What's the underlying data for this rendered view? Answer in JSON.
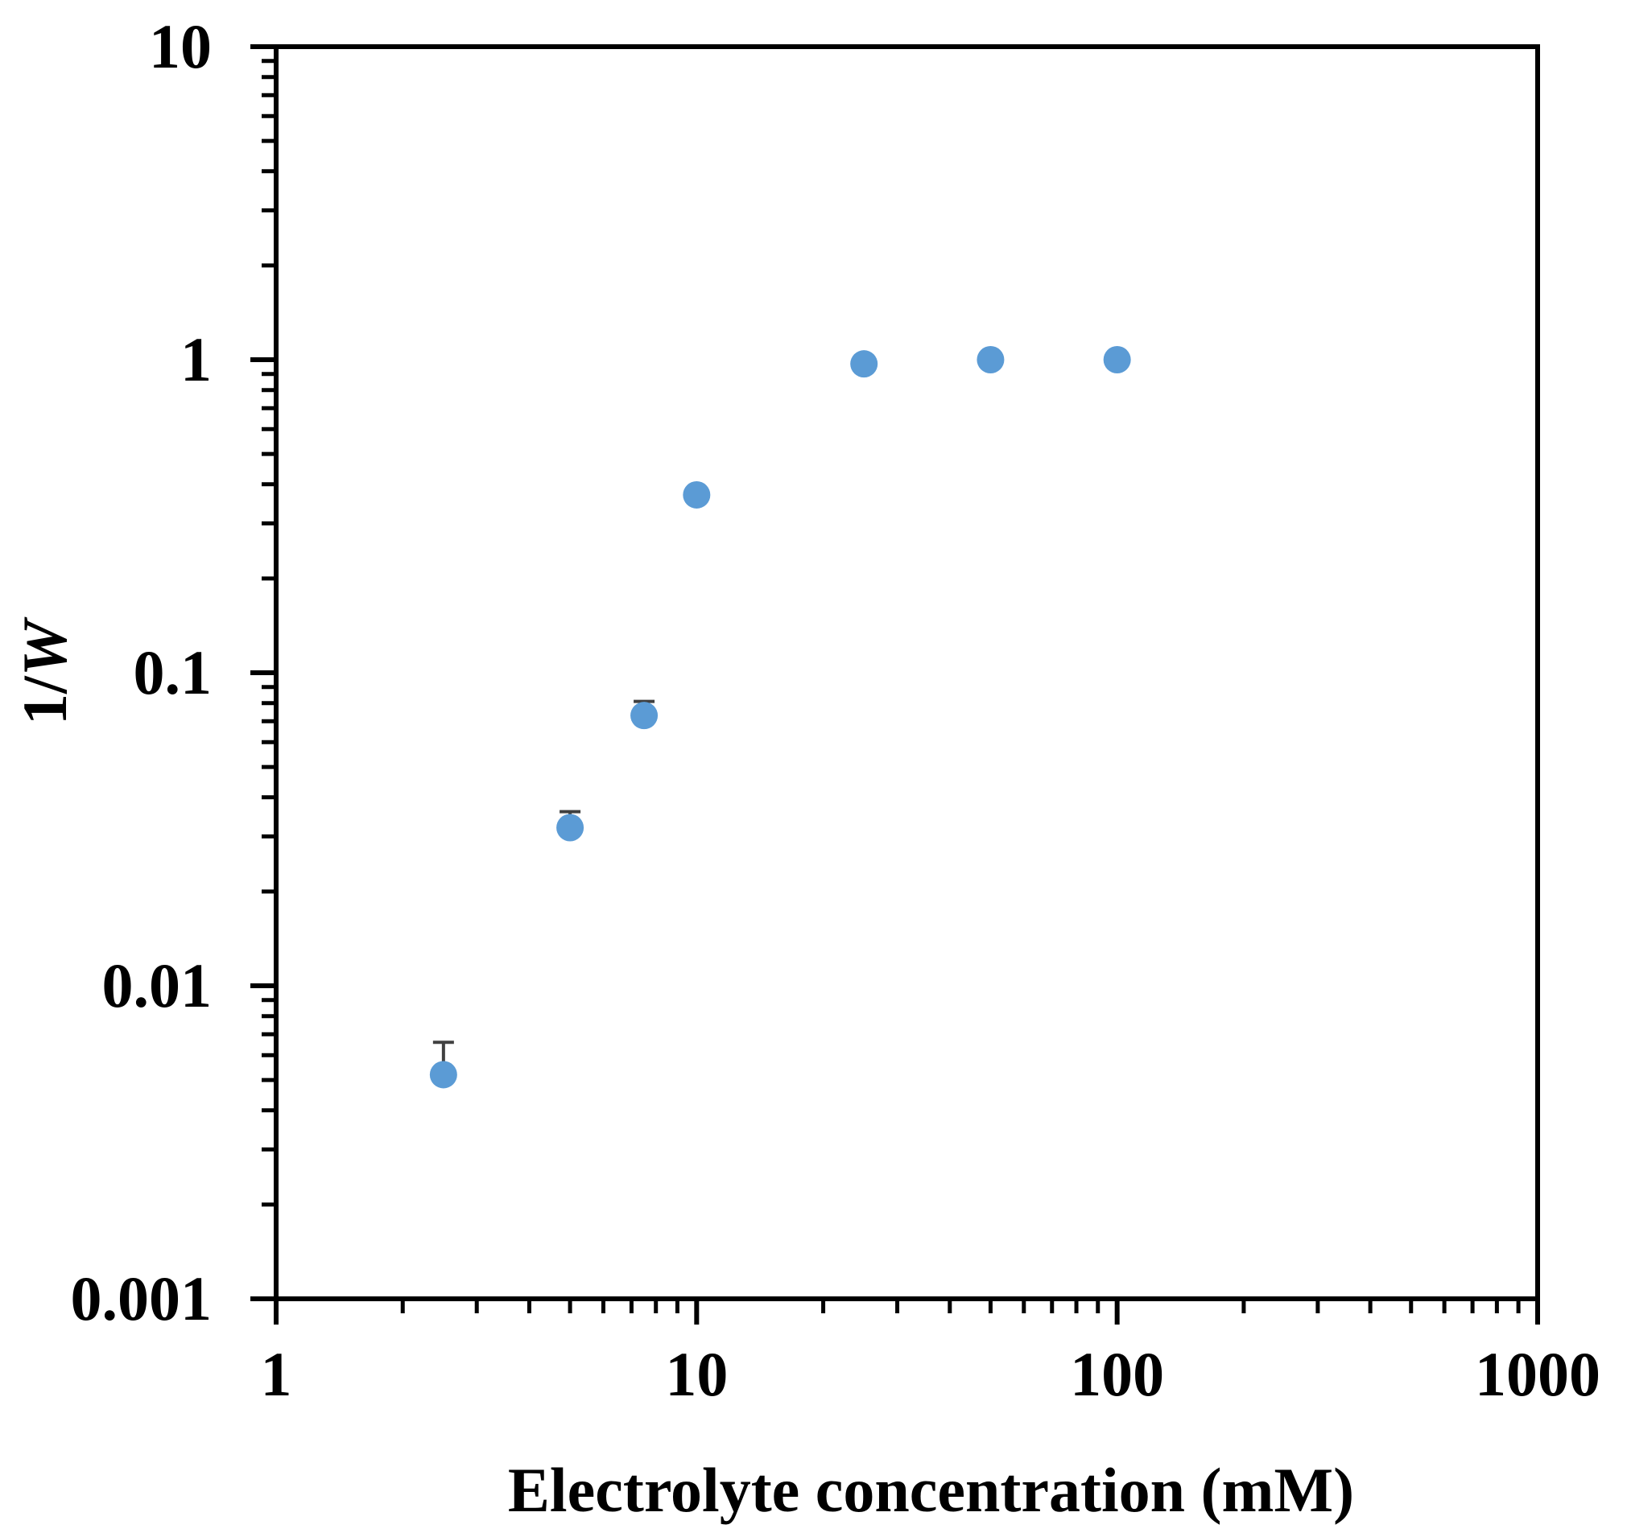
{
  "chart_data": {
    "type": "scatter",
    "title": "",
    "xlabel": "Electrolyte concentration (mM)",
    "ylabel_prefix": "1/",
    "ylabel_var": "W",
    "xscale": "log",
    "yscale": "log",
    "xlim": [
      1,
      1000
    ],
    "ylim": [
      0.001,
      10
    ],
    "x_ticks": [
      {
        "value": 1,
        "label": "1"
      },
      {
        "value": 10,
        "label": "10"
      },
      {
        "value": 100,
        "label": "100"
      },
      {
        "value": 1000,
        "label": "1000"
      }
    ],
    "y_ticks": [
      {
        "value": 0.001,
        "label": "0.001"
      },
      {
        "value": 0.01,
        "label": "0.01"
      },
      {
        "value": 0.1,
        "label": "0.1"
      },
      {
        "value": 1,
        "label": "1"
      },
      {
        "value": 10,
        "label": "10"
      }
    ],
    "grid": false,
    "series": [
      {
        "name": "1/W",
        "color": "#5b9bd5",
        "points": [
          {
            "x": 2.5,
            "y": 0.0052,
            "err_upper": 0.0066
          },
          {
            "x": 5,
            "y": 0.032,
            "err_upper": 0.036
          },
          {
            "x": 7.5,
            "y": 0.073,
            "err_upper": 0.081
          },
          {
            "x": 10,
            "y": 0.37,
            "err_upper": null
          },
          {
            "x": 25,
            "y": 0.97,
            "err_upper": null
          },
          {
            "x": 50,
            "y": 1.0,
            "err_upper": null
          },
          {
            "x": 100,
            "y": 1.0,
            "err_upper": null
          }
        ]
      }
    ],
    "error_bar_color": "#404040"
  }
}
